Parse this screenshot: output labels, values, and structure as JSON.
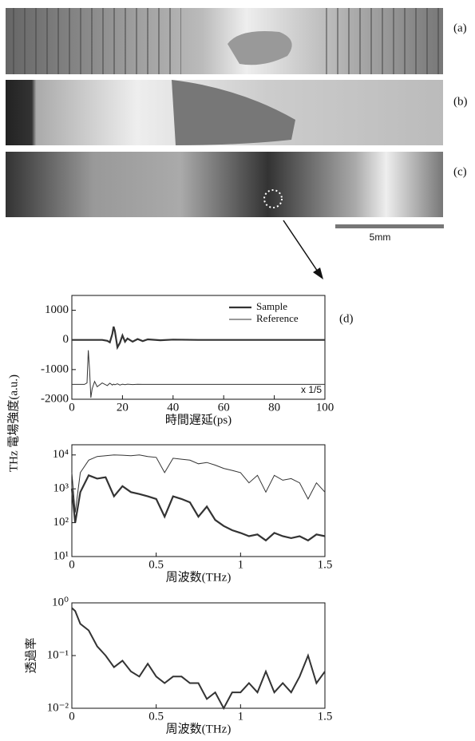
{
  "panel_labels": [
    "(a)",
    "(b)",
    "(c)",
    "(d)"
  ],
  "scale_bar": "5mm",
  "shared_ylabel": "THz 電場強度(a.u.)",
  "chart_data": [
    {
      "type": "line",
      "xlabel": "時間遅延(ps)",
      "legend": "upper right",
      "annotation": "x 1/5",
      "xlim": [
        0,
        100
      ],
      "xticks": [
        0,
        20,
        40,
        60,
        80,
        100
      ],
      "ylim": [
        -2000,
        1500
      ],
      "yticks": [
        -2000,
        -1000,
        0,
        1000
      ],
      "x": [
        0,
        5,
        6,
        6.5,
        7,
        7.5,
        8,
        9,
        10,
        12,
        14,
        15,
        16,
        16.5,
        17,
        18,
        19,
        20,
        21,
        22,
        24,
        26,
        28,
        30,
        35,
        40,
        50,
        60,
        70,
        80,
        90,
        100
      ],
      "series": [
        {
          "name": "Sample",
          "color": "#333333",
          "linewidth": 2.2,
          "values": [
            0,
            0,
            0,
            0,
            0,
            0,
            0,
            0,
            0,
            0,
            -30,
            -80,
            200,
            450,
            300,
            -250,
            -100,
            150,
            -60,
            50,
            -60,
            30,
            -40,
            20,
            -10,
            10,
            0,
            0,
            0,
            0,
            0,
            0
          ]
        },
        {
          "name": "Reference",
          "color": "#333333",
          "linewidth": 1,
          "values": [
            -1500,
            -1500,
            -1450,
            -350,
            -1000,
            -1950,
            -1650,
            -1400,
            -1580,
            -1450,
            -1540,
            -1460,
            -1520,
            -1490,
            -1510,
            -1480,
            -1520,
            -1490,
            -1510,
            -1490,
            -1505,
            -1495,
            -1500,
            -1500,
            -1500,
            -1500,
            -1500,
            -1500,
            -1500,
            -1500,
            -1500,
            -1500
          ]
        }
      ]
    },
    {
      "type": "line",
      "xlabel": "周波数(THz)",
      "log_y": true,
      "xlim": [
        0,
        1.5
      ],
      "xticks": [
        0,
        0.5,
        1,
        1.5
      ],
      "ylim": [
        10,
        20000
      ],
      "yticks": [
        {
          "value": 10,
          "label": "10¹"
        },
        {
          "value": 100,
          "label": "10²"
        },
        {
          "value": 1000,
          "label": "10³"
        },
        {
          "value": 10000,
          "label": "10⁴"
        }
      ],
      "x": [
        0,
        0.02,
        0.05,
        0.1,
        0.15,
        0.2,
        0.25,
        0.3,
        0.35,
        0.4,
        0.45,
        0.5,
        0.55,
        0.6,
        0.65,
        0.7,
        0.75,
        0.8,
        0.85,
        0.9,
        0.95,
        1,
        1.05,
        1.1,
        1.15,
        1.2,
        1.25,
        1.3,
        1.35,
        1.4,
        1.45,
        1.5
      ],
      "series": [
        {
          "color": "#333333",
          "linewidth": 1,
          "values": [
            3000,
            200,
            3000,
            7000,
            9000,
            9500,
            10000,
            9800,
            9500,
            10000,
            9000,
            8500,
            3000,
            8000,
            7500,
            7000,
            5500,
            6000,
            5000,
            4000,
            3500,
            3000,
            1500,
            2500,
            800,
            2500,
            1800,
            2000,
            1500,
            500,
            1500,
            800
          ]
        },
        {
          "color": "#333333",
          "linewidth": 2.2,
          "values": [
            1000,
            100,
            800,
            2500,
            2000,
            2200,
            600,
            1200,
            800,
            700,
            600,
            500,
            150,
            600,
            500,
            400,
            150,
            300,
            120,
            80,
            60,
            50,
            40,
            45,
            30,
            50,
            40,
            35,
            40,
            30,
            45,
            40
          ]
        }
      ]
    },
    {
      "type": "line",
      "xlabel": "周波数(THz)",
      "ylabel": "透過率",
      "log_y": true,
      "xlim": [
        0,
        1.5
      ],
      "xticks": [
        0,
        0.5,
        1,
        1.5
      ],
      "ylim": [
        0.01,
        1
      ],
      "yticks": [
        {
          "value": 0.01,
          "label": "10⁻²"
        },
        {
          "value": 0.1,
          "label": "10⁻¹"
        },
        {
          "value": 1,
          "label": "10⁰"
        }
      ],
      "x": [
        0,
        0.02,
        0.05,
        0.1,
        0.15,
        0.2,
        0.25,
        0.3,
        0.35,
        0.4,
        0.45,
        0.5,
        0.55,
        0.6,
        0.65,
        0.7,
        0.75,
        0.8,
        0.85,
        0.9,
        0.95,
        1,
        1.05,
        1.1,
        1.15,
        1.2,
        1.25,
        1.3,
        1.35,
        1.4,
        1.45,
        1.5
      ],
      "series": [
        {
          "color": "#333333",
          "linewidth": 2,
          "values": [
            0.8,
            0.7,
            0.4,
            0.3,
            0.15,
            0.1,
            0.06,
            0.08,
            0.05,
            0.04,
            0.07,
            0.04,
            0.03,
            0.04,
            0.04,
            0.03,
            0.03,
            0.015,
            0.02,
            0.01,
            0.02,
            0.02,
            0.03,
            0.02,
            0.05,
            0.02,
            0.03,
            0.02,
            0.04,
            0.1,
            0.03,
            0.05
          ]
        }
      ]
    }
  ]
}
